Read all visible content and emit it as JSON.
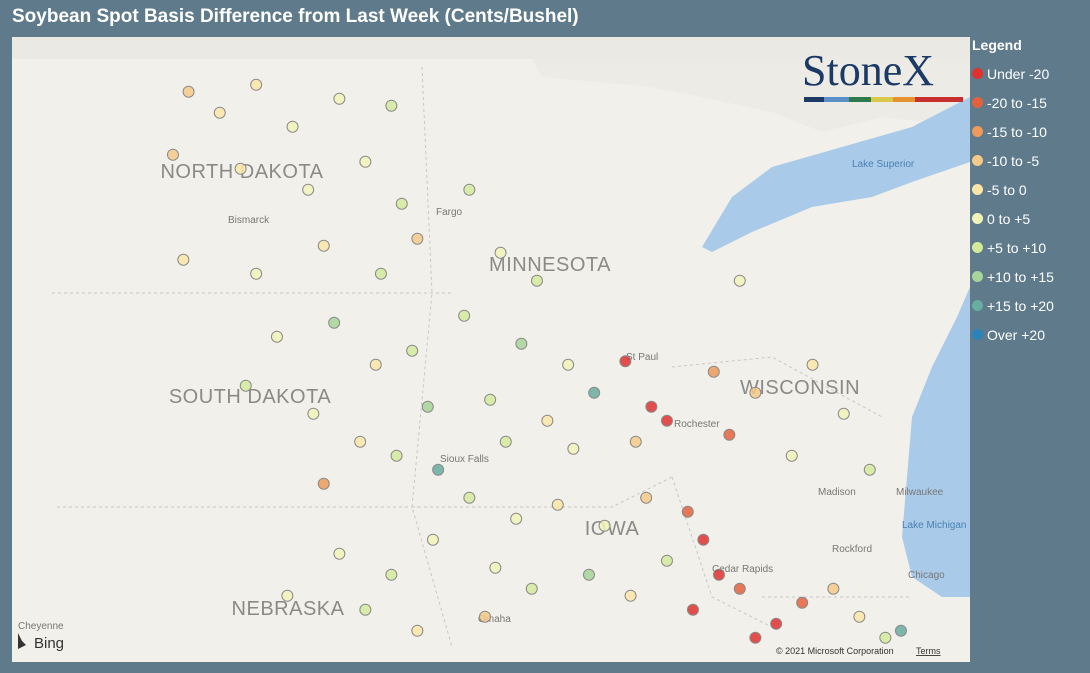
{
  "header": {
    "title": "Soybean Spot Basis Difference from Last Week (Cents/Bushel)"
  },
  "logo": {
    "text": "StoneX"
  },
  "legend": {
    "title": "Legend",
    "items": [
      {
        "label": "Under -20",
        "color": "#e0302f"
      },
      {
        "label": "-20 to -15",
        "color": "#e4613d"
      },
      {
        "label": "-15 to -10",
        "color": "#ef9a5c"
      },
      {
        "label": "-10 to -5",
        "color": "#f5c98a"
      },
      {
        "label": "-5 to 0",
        "color": "#fbe6a8"
      },
      {
        "label": "0 to +5",
        "color": "#f1f5b8"
      },
      {
        "label": "+5 to +10",
        "color": "#d3ea9d"
      },
      {
        "label": "+10 to +15",
        "color": "#a7d49a"
      },
      {
        "label": "+15 to +20",
        "color": "#69ada0"
      },
      {
        "label": "Over +20",
        "color": "#2b83ba"
      }
    ]
  },
  "map": {
    "labels": {
      "states": [
        "NORTH DAKOTA",
        "SOUTH DAKOTA",
        "MINNESOTA",
        "WISCONSIN",
        "NEBRASKA",
        "IOWA"
      ],
      "lakes": [
        "Lake Superior",
        "Lake Michigan"
      ],
      "cities": [
        "Bismarck",
        "Fargo",
        "St Paul",
        "Rochester",
        "Sioux Falls",
        "Madison",
        "Milwaukee",
        "Rockford",
        "Cedar Rapids",
        "Chicago",
        "Omaha",
        "Cheyenne"
      ]
    },
    "points": [
      [
        -101.5,
        48.8,
        3
      ],
      [
        -100.9,
        48.5,
        4
      ],
      [
        -100.2,
        48.9,
        4
      ],
      [
        -99.5,
        48.3,
        5
      ],
      [
        -98.6,
        48.7,
        5
      ],
      [
        -97.6,
        48.6,
        6
      ],
      [
        -101.8,
        47.9,
        3
      ],
      [
        -100.5,
        47.7,
        4
      ],
      [
        -99.2,
        47.4,
        5
      ],
      [
        -98.1,
        47.8,
        5
      ],
      [
        -97.4,
        47.2,
        6
      ],
      [
        -98.9,
        46.6,
        4
      ],
      [
        -97.8,
        46.2,
        6
      ],
      [
        -97.1,
        46.7,
        3
      ],
      [
        -100.2,
        46.2,
        5
      ],
      [
        -101.6,
        46.4,
        4
      ],
      [
        -99.8,
        45.3,
        5
      ],
      [
        -98.7,
        45.5,
        7
      ],
      [
        -97.9,
        44.9,
        4
      ],
      [
        -97.2,
        45.1,
        6
      ],
      [
        -99.1,
        44.2,
        5
      ],
      [
        -98.2,
        43.8,
        4
      ],
      [
        -97.5,
        43.6,
        6
      ],
      [
        -96.9,
        44.3,
        7
      ],
      [
        -96.7,
        43.4,
        8
      ],
      [
        -98.9,
        43.2,
        2
      ],
      [
        -100.4,
        44.6,
        6
      ],
      [
        -96.1,
        47.4,
        6
      ],
      [
        -95.5,
        46.5,
        5
      ],
      [
        -94.8,
        46.1,
        6
      ],
      [
        -96.2,
        45.6,
        6
      ],
      [
        -95.1,
        45.2,
        7
      ],
      [
        -94.2,
        44.9,
        5
      ],
      [
        -95.7,
        44.4,
        6
      ],
      [
        -94.6,
        44.1,
        4
      ],
      [
        -93.7,
        44.5,
        8
      ],
      [
        -93.1,
        44.95,
        0
      ],
      [
        -92.6,
        44.3,
        0
      ],
      [
        -92.3,
        44.1,
        0
      ],
      [
        -92.9,
        43.8,
        3
      ],
      [
        -94.1,
        43.7,
        5
      ],
      [
        -95.4,
        43.8,
        6
      ],
      [
        -91.4,
        44.8,
        2
      ],
      [
        -90.6,
        44.5,
        3
      ],
      [
        -89.5,
        44.9,
        4
      ],
      [
        -89.9,
        43.6,
        5
      ],
      [
        -88.9,
        44.2,
        5
      ],
      [
        -88.4,
        43.4,
        6
      ],
      [
        -91.1,
        43.9,
        1
      ],
      [
        -90.9,
        46.1,
        5
      ],
      [
        -96.1,
        43.0,
        6
      ],
      [
        -95.2,
        42.7,
        5
      ],
      [
        -94.4,
        42.9,
        4
      ],
      [
        -93.5,
        42.6,
        5
      ],
      [
        -92.7,
        43.0,
        3
      ],
      [
        -91.9,
        42.8,
        1
      ],
      [
        -91.6,
        42.4,
        0
      ],
      [
        -92.3,
        42.1,
        6
      ],
      [
        -93.8,
        41.9,
        7
      ],
      [
        -94.9,
        41.7,
        6
      ],
      [
        -95.6,
        42.0,
        5
      ],
      [
        -91.3,
        41.9,
        0
      ],
      [
        -90.9,
        41.7,
        1
      ],
      [
        -91.8,
        41.4,
        0
      ],
      [
        -93.0,
        41.6,
        4
      ],
      [
        -95.8,
        41.3,
        3
      ],
      [
        -98.6,
        42.2,
        5
      ],
      [
        -97.6,
        41.9,
        6
      ],
      [
        -96.8,
        42.4,
        5
      ],
      [
        -98.1,
        41.4,
        6
      ],
      [
        -97.1,
        41.1,
        4
      ],
      [
        -99.6,
        41.6,
        5
      ],
      [
        -90.2,
        41.2,
        0
      ],
      [
        -89.7,
        41.5,
        1
      ],
      [
        -89.1,
        41.7,
        3
      ],
      [
        -88.6,
        41.3,
        4
      ],
      [
        -88.1,
        41.0,
        6
      ],
      [
        -87.8,
        41.1,
        8
      ],
      [
        -90.6,
        41.0,
        0
      ]
    ]
  },
  "footer": {
    "bing": "Bing",
    "copyright": "© 2021 Microsoft Corporation",
    "terms": "Terms"
  }
}
